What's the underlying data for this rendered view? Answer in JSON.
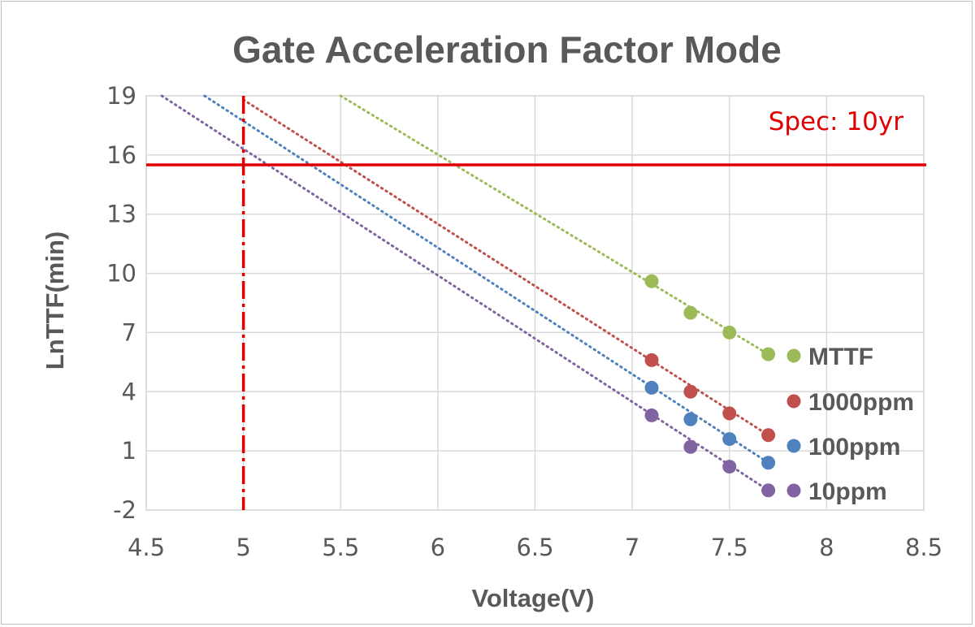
{
  "chart_data": {
    "type": "scatter",
    "title": "Gate Acceleration Factor Mode",
    "xlabel": "Voltage(V)",
    "ylabel": "LnTTF(min)",
    "xlim": [
      4.5,
      8.5
    ],
    "ylim": [
      -2,
      19
    ],
    "x_ticks": [
      "4.5",
      "5",
      "5.5",
      "6",
      "6.5",
      "7",
      "7.5",
      "8",
      "8.5"
    ],
    "y_ticks": [
      "19",
      "16",
      "13",
      "10",
      "7",
      "4",
      "1",
      "-2"
    ],
    "x_tick_values": [
      4.5,
      5,
      5.5,
      6,
      6.5,
      7,
      7.5,
      8,
      8.5
    ],
    "y_tick_values": [
      19,
      16,
      13,
      10,
      7,
      4,
      1,
      -2
    ],
    "grid": true,
    "legend_position": "right",
    "series": [
      {
        "name": "MTTF",
        "color": "#9bbb59",
        "x": [
          7.1,
          7.3,
          7.5,
          7.7
        ],
        "y": [
          9.6,
          8.0,
          7.0,
          5.9
        ],
        "trend": {
          "from": [
            5.5,
            19.0
          ],
          "to": [
            7.7,
            5.9
          ]
        }
      },
      {
        "name": "1000ppm",
        "color": "#c0504d",
        "x": [
          7.1,
          7.3,
          7.5,
          7.7
        ],
        "y": [
          5.6,
          4.0,
          2.9,
          1.8
        ],
        "trend": {
          "from": [
            5.0,
            18.8
          ],
          "to": [
            7.7,
            1.8
          ]
        }
      },
      {
        "name": "100ppm",
        "color": "#4f81bd",
        "x": [
          7.1,
          7.3,
          7.5,
          7.7
        ],
        "y": [
          4.2,
          2.6,
          1.6,
          0.4
        ],
        "trend": {
          "from": [
            4.8,
            19.0
          ],
          "to": [
            7.7,
            0.4
          ]
        }
      },
      {
        "name": "10ppm",
        "color": "#8064a2",
        "x": [
          7.1,
          7.3,
          7.5,
          7.7
        ],
        "y": [
          2.8,
          1.2,
          0.2,
          -1.0
        ],
        "trend": {
          "from": [
            4.58,
            19.0
          ],
          "to": [
            7.7,
            -1.0
          ]
        }
      }
    ],
    "reference_lines": {
      "spec_label": "Spec: 10yr",
      "spec_y": 15.5,
      "spec_color": "#e00000",
      "voltage_x": 5,
      "voltage_color": "#e00000"
    }
  }
}
